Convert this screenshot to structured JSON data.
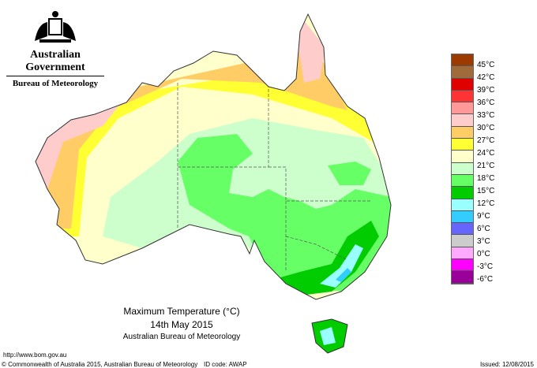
{
  "header": {
    "government": "Australian Government",
    "bureau": "Bureau of Meteorology"
  },
  "title": {
    "line1": "Maximum Temperature (°C)",
    "line2": "14th May 2015",
    "line3": "Australian Bureau of Meteorology"
  },
  "legend": {
    "items": [
      {
        "label": "45°C",
        "color": "#9c3a00"
      },
      {
        "label": "42°C",
        "color": "#a06a3a"
      },
      {
        "label": "39°C",
        "color": "#e00000"
      },
      {
        "label": "36°C",
        "color": "#ff3333"
      },
      {
        "label": "33°C",
        "color": "#ff9999"
      },
      {
        "label": "30°C",
        "color": "#ffcccc"
      },
      {
        "label": "27°C",
        "color": "#ffcc66"
      },
      {
        "label": "24°C",
        "color": "#ffff33"
      },
      {
        "label": "21°C",
        "color": "#ffffcc"
      },
      {
        "label": "18°C",
        "color": "#ccffcc"
      },
      {
        "label": "15°C",
        "color": "#66ff66"
      },
      {
        "label": "12°C",
        "color": "#00cc00"
      },
      {
        "label": "9°C",
        "color": "#99ffff"
      },
      {
        "label": "6°C",
        "color": "#33ccff"
      },
      {
        "label": "3°C",
        "color": "#6666ff"
      },
      {
        "label": "0°C",
        "color": "#cccccc"
      },
      {
        "label": "-3°C",
        "color": "#ffaaff"
      },
      {
        "label": "-6°C",
        "color": "#ff00ff"
      },
      {
        "label": "",
        "color": "#990099"
      }
    ]
  },
  "footer": {
    "url": "http://www.bom.gov.au",
    "copyright": "© Commonwealth of Australia 2015, Australian Bureau of Meteorology",
    "id_code": "ID code: AWAP",
    "issued": "Issued: 12/08/2015"
  }
}
